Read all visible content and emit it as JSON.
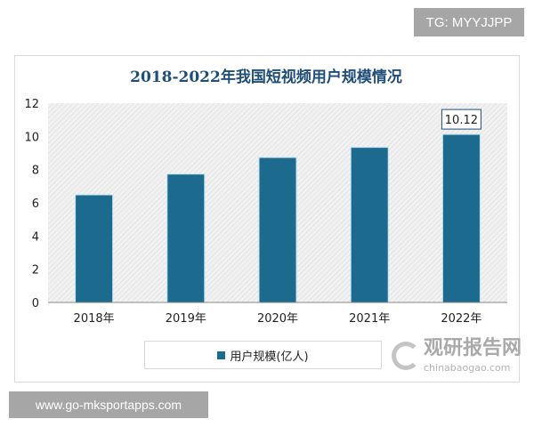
{
  "badge_top": "TG: MYYJJPP",
  "badge_bottom": "www.go-mksportapps.com",
  "watermark": {
    "cn": "观研报告网",
    "en": "chinabaogao.com"
  },
  "chart_data": {
    "type": "bar",
    "title": "2018-2022年我国短视频用户规模情况",
    "categories": [
      "2018年",
      "2019年",
      "2020年",
      "2021年",
      "2022年"
    ],
    "series": [
      {
        "name": "用户规模(亿人)",
        "values": [
          6.48,
          7.73,
          8.73,
          9.34,
          10.12
        ],
        "color": "#1c6a8e"
      }
    ],
    "data_labels": {
      "4": "10.12"
    },
    "yticks": [
      "0",
      "2",
      "4",
      "6",
      "8",
      "10",
      "12"
    ],
    "ylim": [
      0,
      12
    ],
    "grid": false,
    "legend": "bottom",
    "plot_background": "hatched light gray"
  }
}
